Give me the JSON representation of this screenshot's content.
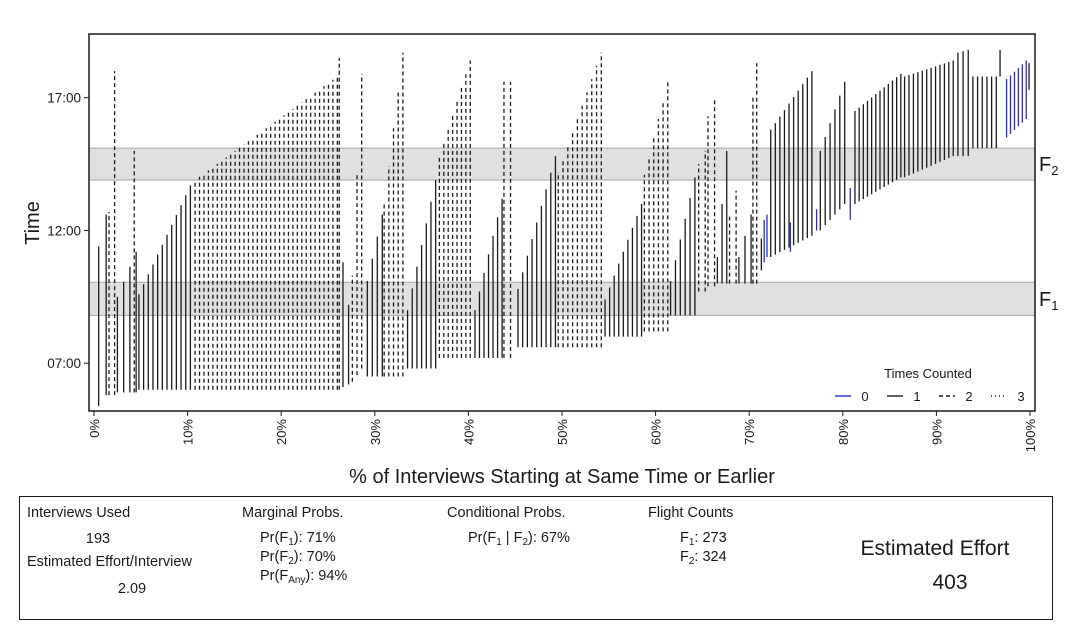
{
  "chart_data": {
    "type": "segments",
    "xlabel": "% of Interviews Starting at Same Time or Earlier",
    "ylabel": "Time",
    "xlim": [
      0,
      100
    ],
    "ylim_hours": [
      5.2,
      19.4
    ],
    "x_ticks": [
      "0%",
      "10%",
      "20%",
      "30%",
      "40%",
      "50%",
      "60%",
      "70%",
      "80%",
      "90%",
      "100%"
    ],
    "y_ticks": [
      {
        "label": "07:00",
        "value": 7
      },
      {
        "label": "12:00",
        "value": 12
      },
      {
        "label": "17:00",
        "value": 17
      }
    ],
    "flight_windows": [
      {
        "label": "F",
        "sub": "1",
        "start": 8.8,
        "end": 10.05
      },
      {
        "label": "F",
        "sub": "2",
        "start": 13.9,
        "end": 15.1
      }
    ],
    "legend": {
      "title": "Times Counted",
      "position": "bottom-right",
      "entries": [
        {
          "label": "0",
          "style": "solid",
          "color": "#2a2ad8"
        },
        {
          "label": "1",
          "style": "solid",
          "color": "#1a1a1a"
        },
        {
          "label": "2",
          "style": "dashed",
          "color": "#1a1a1a"
        },
        {
          "label": "3",
          "style": "dotted",
          "color": "#1a1a1a"
        }
      ]
    },
    "groups": [
      {
        "x_start": 0.5,
        "x_end": 1.3,
        "n": 2,
        "start": [
          5.4,
          5.8
        ],
        "end": [
          11.4,
          12.6
        ],
        "count": 1
      },
      {
        "x_start": 1.6,
        "x_end": 2.2,
        "n": 2,
        "start": [
          5.8,
          5.8
        ],
        "end": [
          12.7,
          18.0
        ],
        "count": 2
      },
      {
        "x_start": 2.5,
        "x_end": 4.5,
        "n": 4,
        "start": [
          5.9,
          5.9
        ],
        "end": [
          9.5,
          11.2
        ],
        "count": 1
      },
      {
        "x_start": 4.3,
        "x_end": 4.3,
        "n": 1,
        "start": [
          5.9,
          5.9
        ],
        "end": [
          15.0,
          15.0
        ],
        "count": 2
      },
      {
        "x_start": 4.8,
        "x_end": 10.3,
        "n": 12,
        "start": [
          6.0,
          6.0
        ],
        "end": [
          9.6,
          13.7
        ],
        "count": 1
      },
      {
        "x_start": 10.8,
        "x_end": 26.0,
        "n": 33,
        "start": [
          6.0,
          6.0
        ],
        "end": [
          13.9,
          17.8
        ],
        "count": 2
      },
      {
        "x_start": 26.2,
        "x_end": 26.2,
        "n": 1,
        "start": [
          6.0,
          6.0
        ],
        "end": [
          18.5,
          18.5
        ],
        "count": 2
      },
      {
        "x_start": 26.6,
        "x_end": 27.2,
        "n": 2,
        "start": [
          6.1,
          6.2
        ],
        "end": [
          10.8,
          9.2
        ],
        "count": 1
      },
      {
        "x_start": 27.6,
        "x_end": 28.6,
        "n": 3,
        "start": [
          6.3,
          6.8
        ],
        "end": [
          10.3,
          17.9
        ],
        "count": 2
      },
      {
        "x_start": 29.2,
        "x_end": 30.8,
        "n": 4,
        "start": [
          6.5,
          6.5
        ],
        "end": [
          10.1,
          12.6
        ],
        "count": 1
      },
      {
        "x_start": 31.0,
        "x_end": 33.0,
        "n": 5,
        "start": [
          6.5,
          6.5
        ],
        "end": [
          13.0,
          18.7
        ],
        "count": 2
      },
      {
        "x_start": 33.5,
        "x_end": 36.5,
        "n": 7,
        "start": [
          6.8,
          6.8
        ],
        "end": [
          9.0,
          13.9
        ],
        "count": 1
      },
      {
        "x_start": 36.9,
        "x_end": 40.2,
        "n": 8,
        "start": [
          7.2,
          7.2
        ],
        "end": [
          14.8,
          18.4
        ],
        "count": 2
      },
      {
        "x_start": 40.7,
        "x_end": 43.6,
        "n": 7,
        "start": [
          7.2,
          7.2
        ],
        "end": [
          9.0,
          13.2
        ],
        "count": 1
      },
      {
        "x_start": 43.8,
        "x_end": 44.5,
        "n": 2,
        "start": [
          7.2,
          7.2
        ],
        "end": [
          17.6,
          17.6
        ],
        "count": 2
      },
      {
        "x_start": 45.3,
        "x_end": 49.3,
        "n": 9,
        "start": [
          7.6,
          7.6
        ],
        "end": [
          9.8,
          14.8
        ],
        "count": 1
      },
      {
        "x_start": 49.6,
        "x_end": 54.2,
        "n": 10,
        "start": [
          7.6,
          7.6
        ],
        "end": [
          14.2,
          18.7
        ],
        "count": 2
      },
      {
        "x_start": 54.6,
        "x_end": 58.5,
        "n": 9,
        "start": [
          8.0,
          8.0
        ],
        "end": [
          9.4,
          13.0
        ],
        "count": 1
      },
      {
        "x_start": 58.8,
        "x_end": 61.3,
        "n": 6,
        "start": [
          8.2,
          8.2
        ],
        "end": [
          14.1,
          17.6
        ],
        "count": 2
      },
      {
        "x_start": 61.6,
        "x_end": 64.2,
        "n": 6,
        "start": [
          8.8,
          8.8
        ],
        "end": [
          10.1,
          14.0
        ],
        "count": 1
      },
      {
        "x_start": 64.6,
        "x_end": 65.3,
        "n": 2,
        "start": [
          9.7,
          9.7
        ],
        "end": [
          14.5,
          15.0
        ],
        "count": 2
      },
      {
        "x_start": 65.6,
        "x_end": 66.3,
        "n": 2,
        "start": [
          9.9,
          9.9
        ],
        "end": [
          16.3,
          17.0
        ],
        "count": 2
      },
      {
        "x_start": 66.6,
        "x_end": 67.6,
        "n": 3,
        "start": [
          10.0,
          10.0
        ],
        "end": [
          11.0,
          15.0
        ],
        "count": 1
      },
      {
        "x_start": 67.9,
        "x_end": 68.6,
        "n": 2,
        "start": [
          10.0,
          10.0
        ],
        "end": [
          12.6,
          13.5
        ],
        "count": 2
      },
      {
        "x_start": 68.9,
        "x_end": 70.2,
        "n": 3,
        "start": [
          10.0,
          10.0
        ],
        "end": [
          11.0,
          12.6
        ],
        "count": 1
      },
      {
        "x_start": 70.4,
        "x_end": 70.8,
        "n": 2,
        "start": [
          10.0,
          10.0
        ],
        "end": [
          17.0,
          18.3
        ],
        "count": 2
      },
      {
        "x_start": 71.3,
        "x_end": 71.6,
        "n": 1,
        "start": [
          10.5,
          10.5
        ],
        "end": [
          11.7,
          11.7
        ],
        "count": 1
      },
      {
        "x_start": 71.6,
        "x_end": 71.9,
        "n": 2,
        "start": [
          10.8,
          11.0
        ],
        "end": [
          12.4,
          12.6
        ],
        "count": 0
      },
      {
        "x_start": 72.3,
        "x_end": 76.7,
        "n": 10,
        "start": [
          11.0,
          11.8
        ],
        "end": [
          15.8,
          18.0
        ],
        "count": 1
      },
      {
        "x_start": 74.4,
        "x_end": 74.4,
        "n": 1,
        "start": [
          11.2,
          11.2
        ],
        "end": [
          12.3,
          12.3
        ],
        "count": 0
      },
      {
        "x_start": 77.2,
        "x_end": 77.2,
        "n": 1,
        "start": [
          12.0,
          12.0
        ],
        "end": [
          12.8,
          12.8
        ],
        "count": 0
      },
      {
        "x_start": 77.6,
        "x_end": 80.2,
        "n": 6,
        "start": [
          12.0,
          13.0
        ],
        "end": [
          15.0,
          17.6
        ],
        "count": 1
      },
      {
        "x_start": 80.8,
        "x_end": 80.8,
        "n": 1,
        "start": [
          12.4,
          12.4
        ],
        "end": [
          13.6,
          13.6
        ],
        "count": 0
      },
      {
        "x_start": 81.3,
        "x_end": 86.2,
        "n": 12,
        "start": [
          13.0,
          14.0
        ],
        "end": [
          16.5,
          17.9
        ],
        "count": 1
      },
      {
        "x_start": 86.6,
        "x_end": 91.8,
        "n": 12,
        "start": [
          14.0,
          14.8
        ],
        "end": [
          17.8,
          18.4
        ],
        "count": 1
      },
      {
        "x_start": 92.3,
        "x_end": 93.4,
        "n": 3,
        "start": [
          14.8,
          14.8
        ],
        "end": [
          18.7,
          18.8
        ],
        "count": 1
      },
      {
        "x_start": 93.9,
        "x_end": 96.4,
        "n": 6,
        "start": [
          15.1,
          15.1
        ],
        "end": [
          17.8,
          17.8
        ],
        "count": 1
      },
      {
        "x_start": 96.8,
        "x_end": 96.8,
        "n": 1,
        "start": [
          17.8,
          17.8
        ],
        "end": [
          18.8,
          18.8
        ],
        "count": 1
      },
      {
        "x_start": 97.5,
        "x_end": 99.6,
        "n": 6,
        "start": [
          15.5,
          16.2
        ],
        "end": [
          17.7,
          18.4
        ],
        "count": 0
      },
      {
        "x_start": 99.9,
        "x_end": 99.9,
        "n": 1,
        "start": [
          17.3,
          17.3
        ],
        "end": [
          18.3,
          18.3
        ],
        "count": 1
      }
    ]
  },
  "summary": {
    "interviews_used": {
      "label": "Interviews Used",
      "value": "193"
    },
    "effort_per_interview": {
      "label": "Estimated Effort/Interview",
      "value": "2.09"
    },
    "marginal": {
      "title": "Marginal Probs.",
      "f1": "): 71%",
      "f2": "): 70%",
      "fany": "): 94%"
    },
    "conditional": {
      "title": "Conditional Probs.",
      "value": "): 67%"
    },
    "flight_counts": {
      "title": "Flight Counts",
      "f1": ": 273",
      "f2": ": 324"
    },
    "estimated_effort": {
      "label": "Estimated Effort",
      "value": "403"
    }
  }
}
